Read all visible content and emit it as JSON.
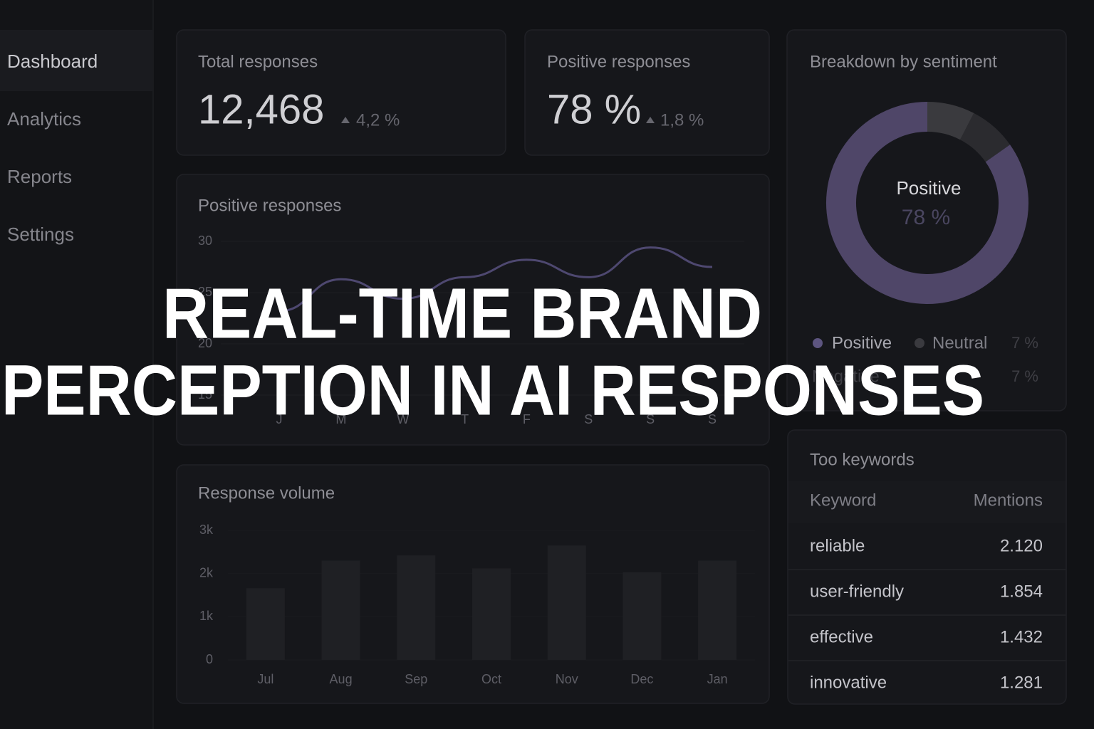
{
  "sidebar": {
    "items": [
      "Dashboard",
      "Analytics",
      "Reports",
      "Settings"
    ]
  },
  "kpis": [
    {
      "label": "Total responses",
      "value": "12,468",
      "change": "4,2 %"
    },
    {
      "label": "Positive responses",
      "value": "78 %",
      "change": "1,8 %"
    }
  ],
  "line_chart": {
    "type": "line",
    "title": "Positive responses",
    "categories": [
      "J",
      "M",
      "W",
      "T",
      "F",
      "S",
      "S",
      "S"
    ],
    "values": [
      23.2,
      26.3,
      24.4,
      26.5,
      28.2,
      26.5,
      29.4,
      27.5
    ],
    "color": "#4e4870",
    "ylim": [
      15,
      30
    ],
    "yticks": [
      15,
      20,
      25,
      30
    ],
    "grid": true
  },
  "donut_chart": {
    "type": "donut",
    "title": "Breakdown by sentiment",
    "categories": [
      "Positive",
      "Neutral",
      "Negative"
    ],
    "values": [
      78,
      7,
      7
    ],
    "value_labels": [
      "78 %",
      "7 %",
      "7 %"
    ],
    "colors": [
      "#4f4668",
      "#2b2b2f",
      "#3a3a3e"
    ]
  },
  "bar_chart": {
    "type": "bar",
    "title": "Response volume",
    "categories": [
      "Jul",
      "Aug",
      "Sep",
      "Oct",
      "Nov",
      "Dec",
      "Jan"
    ],
    "values": [
      1660,
      2300,
      2420,
      2120,
      2650,
      2030,
      2300
    ],
    "color": "#1f2024",
    "ylim": [
      0,
      3000
    ],
    "yticks": [
      0,
      {
        "value": 1000,
        "label": "1k"
      },
      {
        "value": 2000,
        "label": "2k"
      },
      {
        "value": 3000,
        "label": "3k"
      }
    ]
  },
  "keywords": {
    "title": "Too keywords",
    "header": [
      "Keyword",
      "Mentions"
    ],
    "rows": [
      [
        "reliable",
        "2.120"
      ],
      [
        "user-friendly",
        "1.854"
      ],
      [
        "effective",
        "1.432"
      ],
      [
        "innovative",
        "1.281"
      ]
    ]
  },
  "overlay": {
    "lines": [
      "REAL-TIME BRAND",
      "PERCEPTION IN AI RESPONSES"
    ]
  }
}
